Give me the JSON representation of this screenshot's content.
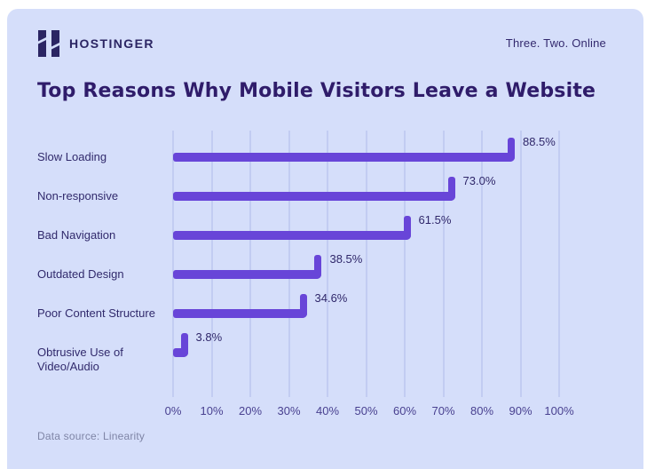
{
  "header": {
    "brand": "HOSTINGER",
    "tagline": "Three. Two. Online"
  },
  "title": "Top Reasons Why Mobile Visitors Leave a Website",
  "footer": {
    "source": "Data source: Linearity"
  },
  "colors": {
    "panel_bg": "#d5defa",
    "bar": "#6845d8",
    "grid": "#c2ccf2",
    "title_text": "#2f1c6a",
    "label_text": "#312a6c",
    "tick_text": "#494190",
    "footer_text": "#7f85a6",
    "brand_text": "#2b2563"
  },
  "chart_data": {
    "type": "bar",
    "orientation": "horizontal",
    "title": "Top Reasons Why Mobile Visitors Leave a Website",
    "categories": [
      "Slow Loading",
      "Non-responsive",
      "Bad Navigation",
      "Outdated Design",
      "Poor Content Structure",
      "Obtrusive Use of Video/Audio"
    ],
    "values": [
      88.5,
      73.0,
      61.5,
      38.5,
      34.6,
      3.8
    ],
    "value_labels": [
      "88.5%",
      "73.0%",
      "61.5%",
      "38.5%",
      "34.6%",
      "3.8%"
    ],
    "x_ticks": [
      "0%",
      "10%",
      "20%",
      "30%",
      "40%",
      "50%",
      "60%",
      "70%",
      "80%",
      "90%",
      "100%"
    ],
    "x_tick_values": [
      0,
      10,
      20,
      30,
      40,
      50,
      60,
      70,
      80,
      90,
      100
    ],
    "xlim": [
      0,
      100
    ],
    "xlabel": "",
    "ylabel": "",
    "grid": true,
    "legend": false,
    "source": "Data source: Linearity"
  }
}
